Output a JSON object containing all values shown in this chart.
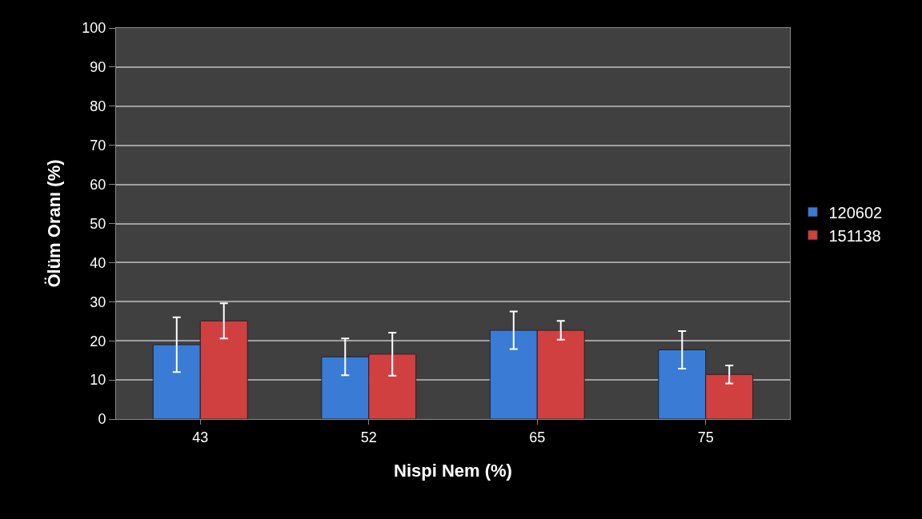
{
  "chart_data": {
    "type": "bar",
    "xlabel": "Nispi Nem (%)",
    "ylabel": "Ölüm Oranı (%)",
    "categories": [
      "43",
      "52",
      "65",
      "75"
    ],
    "series": [
      {
        "name": "120602",
        "color": "#3a7bd5",
        "values": [
          19.0,
          15.9,
          22.7,
          17.7
        ],
        "errors": [
          7.0,
          4.7,
          4.8,
          4.8
        ]
      },
      {
        "name": "151138",
        "color": "#d04040",
        "values": [
          25.1,
          16.6,
          22.7,
          11.4
        ],
        "errors": [
          4.5,
          5.5,
          2.4,
          2.3
        ]
      }
    ],
    "ylim": [
      0,
      100
    ],
    "yticks": [
      0,
      10,
      20,
      30,
      40,
      50,
      60,
      70,
      80,
      90,
      100
    ],
    "grid": "y",
    "legend": "right"
  }
}
